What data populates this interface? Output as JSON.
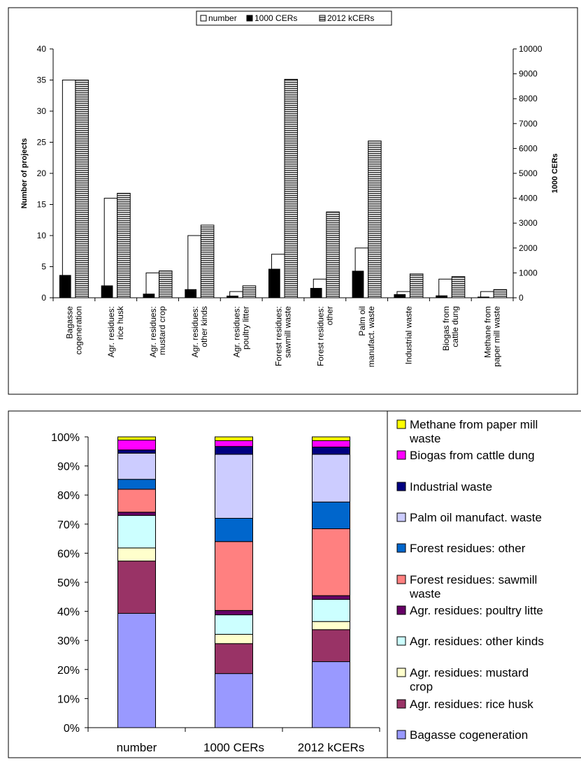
{
  "chart_data": [
    {
      "type": "bar",
      "legend": [
        "number",
        "1000 CERs",
        "2012 kCERs"
      ],
      "legend_position": "top",
      "categories": [
        [
          "Bagasse",
          "cogeneration"
        ],
        [
          "Agr. residues:",
          "rice husk"
        ],
        [
          "Agr. residues:",
          "mustard crop"
        ],
        [
          "Agr. residues:",
          "other kinds"
        ],
        [
          "Agr. residues:",
          "poultry litter"
        ],
        [
          "Forest residues:",
          "sawmill waste"
        ],
        [
          "Forest residues:",
          "other"
        ],
        [
          "Palm oil",
          "manufact. waste"
        ],
        [
          "Industrial waste"
        ],
        [
          "Biogas from",
          "cattle dung"
        ],
        [
          "Methane from",
          "paper mill waste"
        ]
      ],
      "ylabel": "Number of projects",
      "y2label": "1000 CERs",
      "ylim": [
        0,
        40
      ],
      "y2lim": [
        0,
        10000
      ],
      "yticks": [
        "0",
        "5",
        "10",
        "15",
        "20",
        "25",
        "30",
        "35",
        "40"
      ],
      "y2ticks": [
        "0",
        "1000",
        "2000",
        "3000",
        "4000",
        "5000",
        "6000",
        "7000",
        "8000",
        "9000",
        "10000"
      ],
      "series": [
        {
          "name": "number",
          "axis": "left",
          "values": [
            35,
            16,
            4,
            10,
            1,
            7,
            3,
            8,
            1,
            3,
            1
          ]
        },
        {
          "name": "1000 CERs",
          "axis": "right",
          "values": [
            900,
            480,
            150,
            330,
            70,
            1150,
            380,
            1070,
            130,
            80,
            30
          ]
        },
        {
          "name": "2012 kCERs",
          "axis": "right",
          "values": [
            8750,
            4200,
            1080,
            2920,
            480,
            8780,
            3450,
            6300,
            960,
            850,
            330
          ]
        }
      ],
      "colors": {
        "number": "#ffffff",
        "1000 CERs": "#000000",
        "2012 kCERs": "#9a9a9a"
      }
    },
    {
      "type": "bar",
      "stacked": "percent",
      "categories": [
        "number",
        "1000 CERs",
        "2012 kCERs"
      ],
      "yticks": [
        "0%",
        "10%",
        "20%",
        "30%",
        "40%",
        "50%",
        "60%",
        "70%",
        "80%",
        "90%",
        "100%"
      ],
      "legend_position": "right",
      "series": [
        {
          "name": "Bagasse cogeneration",
          "color": "#9999ff",
          "values": [
            39.3,
            18.6,
            22.7
          ]
        },
        {
          "name": "Agr. residues: rice husk",
          "color": "#993366",
          "values": [
            18.0,
            10.3,
            11.0
          ]
        },
        {
          "name": "Agr. residues: mustard crop",
          "color": "#ffffcc",
          "values": [
            4.5,
            3.2,
            2.8
          ]
        },
        {
          "name": "Agr. residues: other kinds",
          "color": "#ccffff",
          "values": [
            11.2,
            6.7,
            7.6
          ]
        },
        {
          "name": "Agr. residues: poultry litter",
          "color": "#660066",
          "values": [
            1.1,
            1.5,
            1.3
          ]
        },
        {
          "name": "Forest residues: sawmill waste",
          "color": "#ff8080",
          "values": [
            7.9,
            23.7,
            23.0
          ]
        },
        {
          "name": "Forest residues: other",
          "color": "#0066cc",
          "values": [
            3.4,
            8.0,
            9.2
          ]
        },
        {
          "name": "Palm oil manufact. waste",
          "color": "#ccccff",
          "values": [
            9.0,
            22.0,
            16.4
          ]
        },
        {
          "name": "Industrial waste",
          "color": "#000080",
          "values": [
            1.1,
            2.7,
            2.5
          ]
        },
        {
          "name": "Biogas from cattle dung",
          "color": "#ff00ff",
          "values": [
            3.4,
            2.0,
            2.2
          ]
        },
        {
          "name": "Methane from paper mill waste",
          "color": "#ffff00",
          "values": [
            1.1,
            1.3,
            1.3
          ]
        }
      ],
      "legend_lines": [
        [
          "Methane from paper mill",
          "waste"
        ],
        [
          "Biogas from cattle dung"
        ],
        [
          "Industrial waste"
        ],
        [
          "Palm oil manufact. waste"
        ],
        [
          "Forest residues: other"
        ],
        [
          "Forest residues: sawmill",
          "waste"
        ],
        [
          "Agr. residues: poultry litte"
        ],
        [
          "Agr. residues: other kinds"
        ],
        [
          "Agr. residues: mustard",
          "crop"
        ],
        [
          "Agr. residues: rice husk"
        ],
        [
          "Bagasse cogeneration"
        ]
      ]
    }
  ]
}
